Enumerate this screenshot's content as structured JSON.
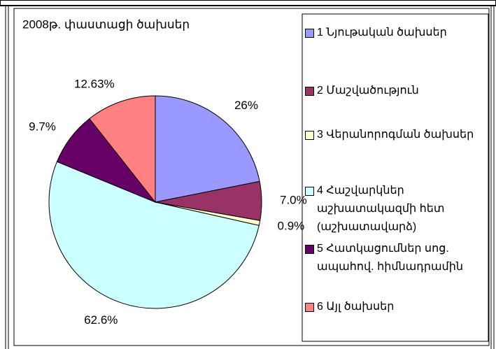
{
  "chart_data": {
    "type": "pie",
    "title": "2008թ. փաստացի ծախսեր",
    "categories": [
      "1 Նյութական ծախսեր",
      "2 Մաշվածություն",
      "3 Վերանորոգման ծախսեր",
      "4 Հաշվարկներ աշխատակազմի հետ (աշխատավարձ)",
      "5 Հատկացումներ սոց. ապահով. հիմնադրամին",
      "6 Այլ ծախսեր"
    ],
    "values": [
      26,
      7.0,
      0.9,
      62.6,
      9.7,
      12.63
    ],
    "value_labels": [
      "26%",
      "7.0%",
      "0.9%",
      "62.6%",
      "9.7%",
      "12.63%"
    ],
    "colors": [
      "#9999ff",
      "#993366",
      "#ffffcc",
      "#ccffff",
      "#660066",
      "#ff8080"
    ],
    "legend": "right"
  }
}
